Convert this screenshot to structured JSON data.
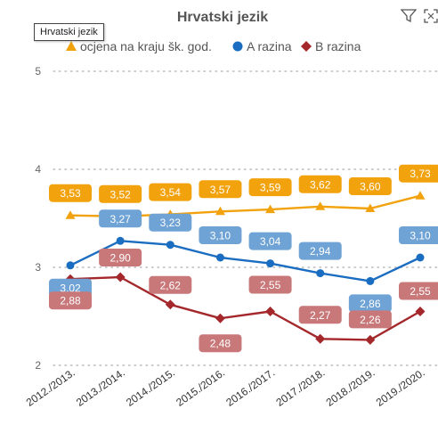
{
  "tooltip": "Hrvatski jezik",
  "icons": [
    "filter-icon",
    "focus-mode-icon"
  ],
  "colors": {
    "ocjena": "#F2A20C",
    "a_razina": "#1B6DC1",
    "b_razina": "#A4282B",
    "label_ocjena": "#F2A20C",
    "label_a": "#6FA3D5",
    "label_b": "#C9787A"
  },
  "chart_data": {
    "type": "line",
    "title": "Hrvatski jezik",
    "categories": [
      "2012./2013.",
      "2013./2014.",
      "2014./2015.",
      "2015./2016.",
      "2016./2017.",
      "2017./2018.",
      "2018./2019.",
      "2019./2020."
    ],
    "series": [
      {
        "name": "ocjena na kraju šk. god.",
        "marker": "triangle",
        "values": [
          3.53,
          3.52,
          3.54,
          3.57,
          3.59,
          3.62,
          3.6,
          3.73
        ],
        "labels": [
          "3,53",
          "3,52",
          "3,54",
          "3,57",
          "3,59",
          "3,62",
          "3,60",
          "3,73"
        ]
      },
      {
        "name": "A razina",
        "marker": "circle",
        "values": [
          3.02,
          3.27,
          3.23,
          3.1,
          3.04,
          2.94,
          2.86,
          3.1
        ],
        "labels": [
          "3,02",
          "3,27",
          "3,23",
          "3,10",
          "3,04",
          "2,94",
          "2,86",
          "3,10"
        ]
      },
      {
        "name": "B razina",
        "marker": "diamond",
        "values": [
          2.88,
          2.9,
          2.62,
          2.48,
          2.55,
          2.27,
          2.26,
          2.55
        ],
        "labels": [
          "2,88",
          "2,90",
          "2,62",
          "2,48",
          "2,55",
          "2,27",
          "2,26",
          "2,55"
        ]
      }
    ],
    "yticks": [
      "2",
      "3",
      "4",
      "5"
    ],
    "ylim": [
      2,
      5
    ],
    "grid": true,
    "legend_position": "top"
  }
}
